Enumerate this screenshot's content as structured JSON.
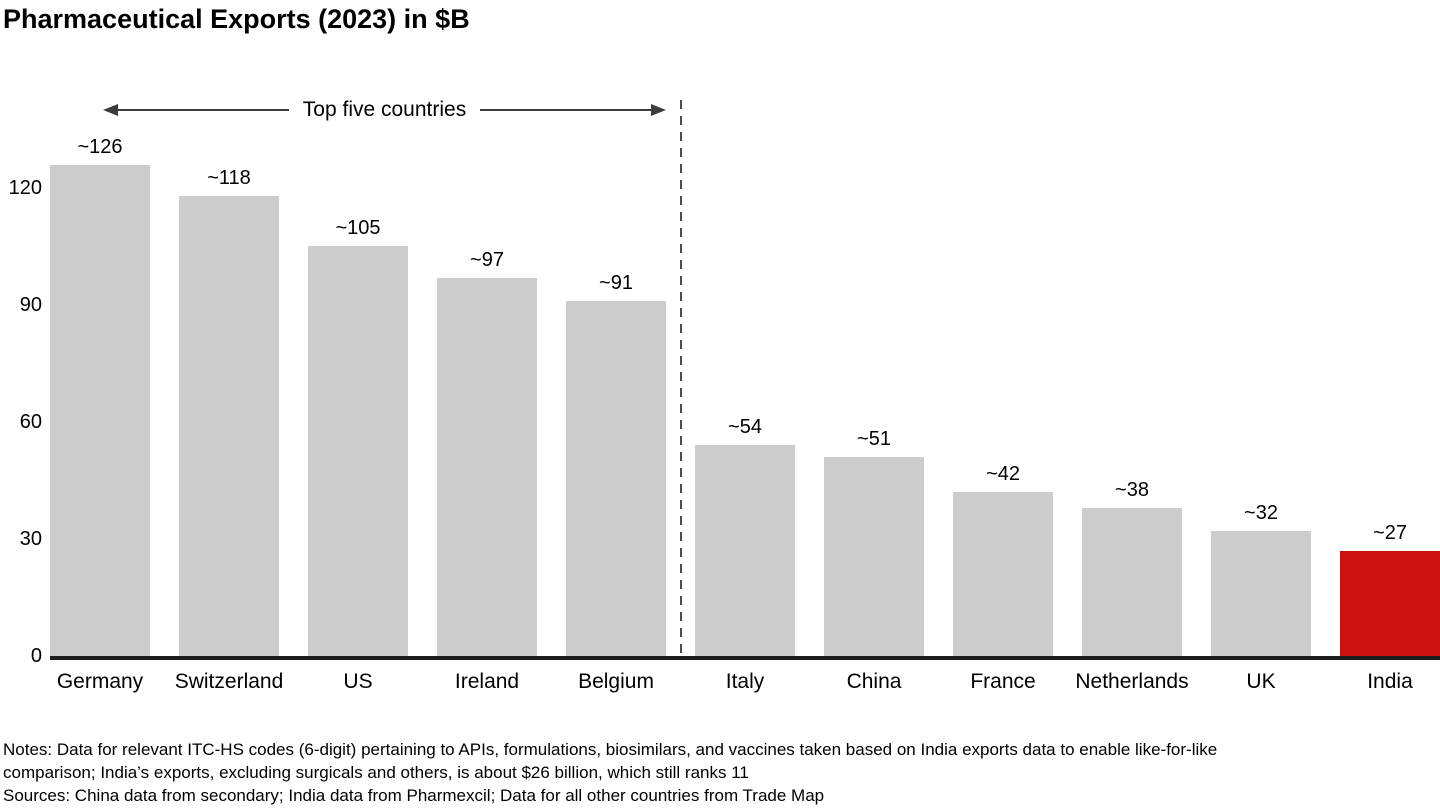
{
  "title": "Pharmaceutical Exports (2023) in $B",
  "annotation": {
    "label": "Top five countries"
  },
  "chart_data": {
    "type": "bar",
    "title": "Pharmaceutical Exports (2023) in $B",
    "categories": [
      "Germany",
      "Switzerland",
      "US",
      "Ireland",
      "Belgium",
      "Italy",
      "China",
      "France",
      "Netherlands",
      "UK",
      "India"
    ],
    "values": [
      126,
      118,
      105,
      97,
      91,
      54,
      51,
      42,
      38,
      32,
      27
    ],
    "value_labels": [
      "~126",
      "~118",
      "~105",
      "~97",
      "~91",
      "~54",
      "~51",
      "~42",
      "~38",
      "~32",
      "~27"
    ],
    "xlabel": "",
    "ylabel": "",
    "yticks": [
      0,
      30,
      60,
      90,
      120
    ],
    "ylim": [
      0,
      130
    ],
    "grid": false,
    "legend_position": "none",
    "separator_after_index": 4,
    "separator_label": "Top five countries",
    "highlight_category": "India",
    "bar_color": "#cccccc",
    "highlight_color": "#cc1111"
  },
  "notes": {
    "line1": "Notes: Data for relevant ITC-HS codes (6-digit) pertaining to APIs, formulations, biosimilars, and vaccines taken based on India exports data to enable like-for-like",
    "line2": "comparison; India’s exports, excluding surgicals and others, is about $26 billion, which still ranks 11",
    "sources": "Sources: China data from secondary; India data from Pharmexcil; Data for all other countries from Trade Map"
  }
}
